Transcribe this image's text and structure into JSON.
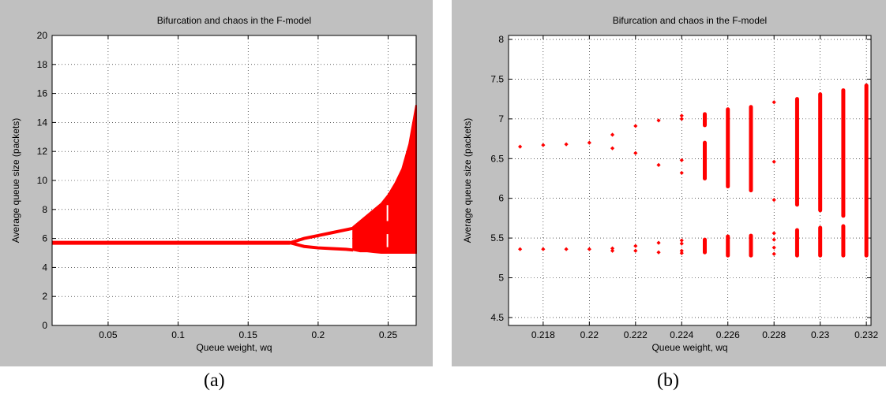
{
  "captions": [
    "(a)",
    "(b)"
  ],
  "colors": {
    "marker": "#ff0000",
    "panel_bg": "#c0c0c0",
    "plot_bg": "#ffffff",
    "grid": "#000000"
  },
  "chart_data": [
    {
      "type": "scatter",
      "title": "Bifurcation and chaos in the F-model",
      "xlabel": "Queue weight, wq",
      "ylabel": "Average queue size (packets)",
      "xlim": [
        0.01,
        0.27
      ],
      "ylim": [
        0,
        20
      ],
      "xticks": [
        0.05,
        0.1,
        0.15,
        0.2,
        0.25
      ],
      "xtick_labels": [
        "0.05",
        "0.1",
        "0.15",
        "0.2",
        "0.25"
      ],
      "yticks": [
        0,
        2,
        4,
        6,
        8,
        10,
        12,
        14,
        16,
        18,
        20
      ],
      "ytick_labels": [
        "0",
        "2",
        "4",
        "6",
        "8",
        "10",
        "12",
        "14",
        "16",
        "18",
        "20"
      ],
      "grid": true,
      "series": [
        {
          "values_description_free": true,
          "stable_branch": {
            "x": [
              0.01,
              0.18
            ],
            "y": 5.7
          },
          "period2_upper": {
            "x": [
              0.18,
              0.19,
              0.2,
              0.21,
              0.22,
              0.225
            ],
            "y": [
              5.7,
              6.0,
              6.2,
              6.4,
              6.6,
              6.7
            ]
          },
          "period2_lower": {
            "x": [
              0.18,
              0.19,
              0.2,
              0.21,
              0.22,
              0.225
            ],
            "y": [
              5.7,
              5.45,
              5.35,
              5.3,
              5.25,
              5.2
            ]
          },
          "chaotic_envelope": {
            "x": [
              0.225,
              0.23,
              0.235,
              0.24,
              0.245,
              0.25,
              0.255,
              0.26,
              0.265,
              0.27
            ],
            "y_min": [
              5.2,
              5.1,
              5.1,
              5.05,
              5.0,
              5.0,
              5.0,
              5.0,
              5.0,
              5.0
            ],
            "y_max": [
              6.8,
              7.2,
              7.6,
              8.0,
              8.4,
              9.0,
              9.8,
              10.8,
              12.5,
              15.2
            ]
          }
        }
      ]
    },
    {
      "type": "scatter",
      "title": "Bifurcation and chaos in the F-model",
      "xlabel": "Queue weight, wq",
      "ylabel": "Average queue size (packets)",
      "xlim": [
        0.2165,
        0.2322
      ],
      "ylim": [
        4.4,
        8.05
      ],
      "xticks": [
        0.218,
        0.22,
        0.222,
        0.224,
        0.226,
        0.228,
        0.23,
        0.232
      ],
      "xtick_labels": [
        "0.218",
        "0.22",
        "0.222",
        "0.224",
        "0.226",
        "0.228",
        "0.23",
        "0.232"
      ],
      "yticks": [
        4.5,
        5,
        5.5,
        6,
        6.5,
        7,
        7.5,
        8
      ],
      "ytick_labels": [
        "4.5",
        "5",
        "5.5",
        "6",
        "6.5",
        "7",
        "7.5",
        "8"
      ],
      "grid": true,
      "points": [
        {
          "x": 0.217,
          "y": 6.65
        },
        {
          "x": 0.217,
          "y": 5.36
        },
        {
          "x": 0.218,
          "y": 6.67
        },
        {
          "x": 0.218,
          "y": 5.36
        },
        {
          "x": 0.219,
          "y": 6.68
        },
        {
          "x": 0.219,
          "y": 5.36
        },
        {
          "x": 0.22,
          "y": 6.7
        },
        {
          "x": 0.22,
          "y": 5.36
        },
        {
          "x": 0.221,
          "y": 6.8
        },
        {
          "x": 0.221,
          "y": 6.63
        },
        {
          "x": 0.221,
          "y": 5.37
        },
        {
          "x": 0.221,
          "y": 5.34
        },
        {
          "x": 0.222,
          "y": 6.91
        },
        {
          "x": 0.222,
          "y": 6.57
        },
        {
          "x": 0.222,
          "y": 5.4
        },
        {
          "x": 0.222,
          "y": 5.34
        },
        {
          "x": 0.223,
          "y": 6.98
        },
        {
          "x": 0.223,
          "y": 6.42
        },
        {
          "x": 0.223,
          "y": 5.44
        },
        {
          "x": 0.223,
          "y": 5.32
        },
        {
          "x": 0.224,
          "y": 7.04
        },
        {
          "x": 0.224,
          "y": 7.0
        },
        {
          "x": 0.224,
          "y": 6.48
        },
        {
          "x": 0.224,
          "y": 6.32
        },
        {
          "x": 0.224,
          "y": 5.47
        },
        {
          "x": 0.224,
          "y": 5.43
        },
        {
          "x": 0.224,
          "y": 5.34
        },
        {
          "x": 0.224,
          "y": 5.31
        },
        {
          "x": 0.228,
          "y": 7.21
        },
        {
          "x": 0.228,
          "y": 6.46
        },
        {
          "x": 0.228,
          "y": 5.98
        },
        {
          "x": 0.228,
          "y": 5.56
        },
        {
          "x": 0.228,
          "y": 5.48
        },
        {
          "x": 0.228,
          "y": 5.38
        },
        {
          "x": 0.228,
          "y": 5.3
        }
      ],
      "segments": [
        {
          "x": 0.225,
          "y": [
            6.92,
            7.06
          ]
        },
        {
          "x": 0.225,
          "y": [
            6.25,
            6.7
          ]
        },
        {
          "x": 0.225,
          "y": [
            5.32,
            5.48
          ]
        },
        {
          "x": 0.226,
          "y": [
            6.15,
            7.12
          ]
        },
        {
          "x": 0.226,
          "y": [
            5.28,
            5.52
          ]
        },
        {
          "x": 0.227,
          "y": [
            6.1,
            7.15
          ]
        },
        {
          "x": 0.227,
          "y": [
            5.28,
            5.53
          ]
        },
        {
          "x": 0.229,
          "y": [
            5.92,
            7.25
          ]
        },
        {
          "x": 0.229,
          "y": [
            5.28,
            5.6
          ]
        },
        {
          "x": 0.23,
          "y": [
            5.85,
            7.31
          ]
        },
        {
          "x": 0.23,
          "y": [
            5.28,
            5.63
          ]
        },
        {
          "x": 0.231,
          "y": [
            5.78,
            7.36
          ]
        },
        {
          "x": 0.231,
          "y": [
            5.28,
            5.65
          ]
        },
        {
          "x": 0.232,
          "y": [
            5.28,
            7.42
          ]
        }
      ]
    }
  ]
}
